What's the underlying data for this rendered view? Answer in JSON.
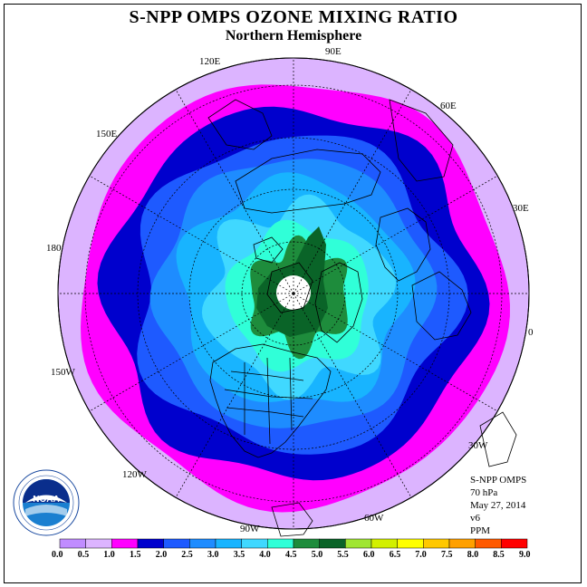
{
  "title": "S-NPP OMPS OZONE MIXING RATIO",
  "subtitle": "Northern Hemisphere",
  "longitude_labels": [
    "90E",
    "60E",
    "30E",
    "0",
    "30W",
    "60W",
    "90W",
    "120W",
    "150W",
    "180",
    "150E",
    "120E"
  ],
  "info": {
    "instrument": "S-NPP OMPS",
    "level": "70 hPa",
    "date": "May 27, 2014",
    "version": "v6",
    "units": "PPM"
  },
  "logo_text": "NOAA",
  "colorbar": {
    "ticks": [
      "0.0",
      "0.5",
      "1.0",
      "1.5",
      "2.0",
      "2.5",
      "3.0",
      "3.5",
      "4.0",
      "4.5",
      "5.0",
      "5.5",
      "6.0",
      "6.5",
      "7.0",
      "7.5",
      "8.0",
      "8.5",
      "9.0"
    ],
    "colors": [
      "#c08cff",
      "#dcb4ff",
      "#ff00ff",
      "#0000cd",
      "#1e5aff",
      "#1e8cff",
      "#18b4ff",
      "#40d8ff",
      "#30ffd8",
      "#1e8c3c",
      "#0a6428",
      "#a0e632",
      "#d2f000",
      "#ffff00",
      "#ffc800",
      "#ffa000",
      "#ff5a00",
      "#ff0000",
      "#8c5a3c"
    ]
  },
  "map": {
    "bands": [
      {
        "value_ppm": 1.0,
        "color": "#dcb4ff"
      },
      {
        "value_ppm": 1.5,
        "color": "#ff00ff"
      },
      {
        "value_ppm": 2.0,
        "color": "#0000cd"
      },
      {
        "value_ppm": 2.5,
        "color": "#1e5aff"
      },
      {
        "value_ppm": 3.0,
        "color": "#1e8cff"
      },
      {
        "value_ppm": 3.5,
        "color": "#18b4ff"
      },
      {
        "value_ppm": 4.0,
        "color": "#40d8ff"
      },
      {
        "value_ppm": 4.5,
        "color": "#30ffd8"
      },
      {
        "value_ppm": 5.0,
        "color": "#1e8c3c"
      }
    ],
    "polar_gap_color": "#ffffff"
  }
}
